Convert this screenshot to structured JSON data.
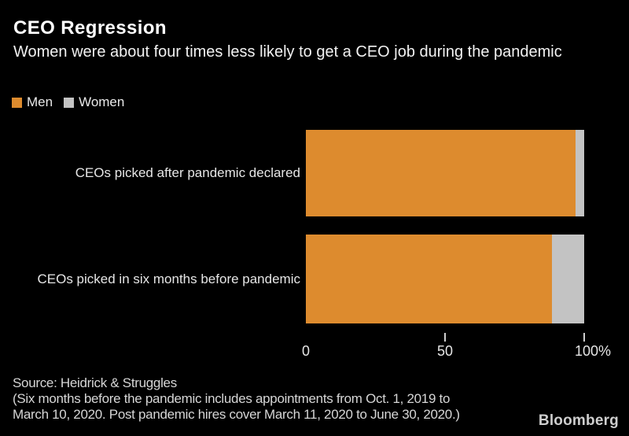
{
  "header": {
    "title": "CEO Regression",
    "subtitle": "Women were about four times less likely to get a CEO job during the pandemic"
  },
  "chart_data": {
    "type": "bar",
    "orientation": "horizontal",
    "stacked": true,
    "unit": "percent",
    "title": "CEO Regression",
    "subtitle": "Women were about four times less likely to get a CEO job during the pandemic",
    "categories": [
      "CEOs picked after pandemic declared",
      "CEOs picked in six months before pandemic"
    ],
    "series": [
      {
        "name": "Men",
        "color": "#DD8B2E",
        "values": [
          96.9,
          88.4
        ]
      },
      {
        "name": "Women",
        "color": "#C3C3C3",
        "values": [
          3.1,
          11.6
        ]
      }
    ],
    "xlim": [
      0,
      100
    ],
    "xticks": [
      {
        "value": 0,
        "label": "0",
        "has_tick_mark": false
      },
      {
        "value": 50,
        "label": "50",
        "has_tick_mark": true
      },
      {
        "value": 100,
        "label": "100%",
        "has_tick_mark": true
      }
    ],
    "legend_position": "top-left",
    "grid": false,
    "background": "#000000"
  },
  "footer": {
    "source": "Source: Heidrick & Struggles",
    "note_line1": "(Six months before the pandemic includes appointments from Oct. 1, 2019 to",
    "note_line2": "March 10, 2020. Post pandemic hires cover March 11, 2020 to June 30, 2020.)",
    "brand": "Bloomberg"
  },
  "colors": {
    "background": "#000000",
    "title_text": "#FFFFFF",
    "men": "#DD8B2E",
    "women": "#C3C3C3"
  }
}
